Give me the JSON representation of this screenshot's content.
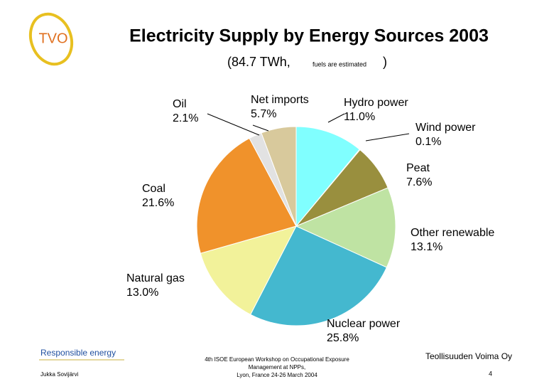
{
  "logo": "TVO",
  "chart_data": {
    "type": "pie",
    "title": "Electricity Supply by Energy Sources 2003",
    "subtitle": [
      "(84.7 TWh,",
      "fuels are estimated",
      ")"
    ],
    "categories": [
      "Hydro power",
      "Wind power",
      "Peat",
      "Other renewable",
      "Nuclear power",
      "Natural gas",
      "Coal",
      "Oil",
      "Net imports"
    ],
    "values": [
      11.0,
      0.1,
      7.6,
      13.1,
      25.8,
      13.0,
      21.6,
      2.1,
      5.7
    ],
    "value_labels": [
      "11.0%",
      "0.1%",
      "7.6%",
      "13.1%",
      "25.8%",
      "13.0%",
      "21.6%",
      "2.1%",
      "5.7%"
    ],
    "colors": [
      "#80ffff",
      "#3a6ea5",
      "#998f3e",
      "#bfe3a3",
      "#44b8cf",
      "#f2f29a",
      "#f0922b",
      "#e2e2e2",
      "#d8c99c"
    ]
  },
  "footer": {
    "left_title": "Responsible energy",
    "left_author": "Jukka Sovijärvi",
    "center": [
      "4th ISOE European Workshop on Occupational Exposure",
      "Management at NPPs,",
      "Lyon, France 24-26 March 2004"
    ],
    "right_company": "Teollisuuden Voima Oy",
    "page": "4"
  }
}
